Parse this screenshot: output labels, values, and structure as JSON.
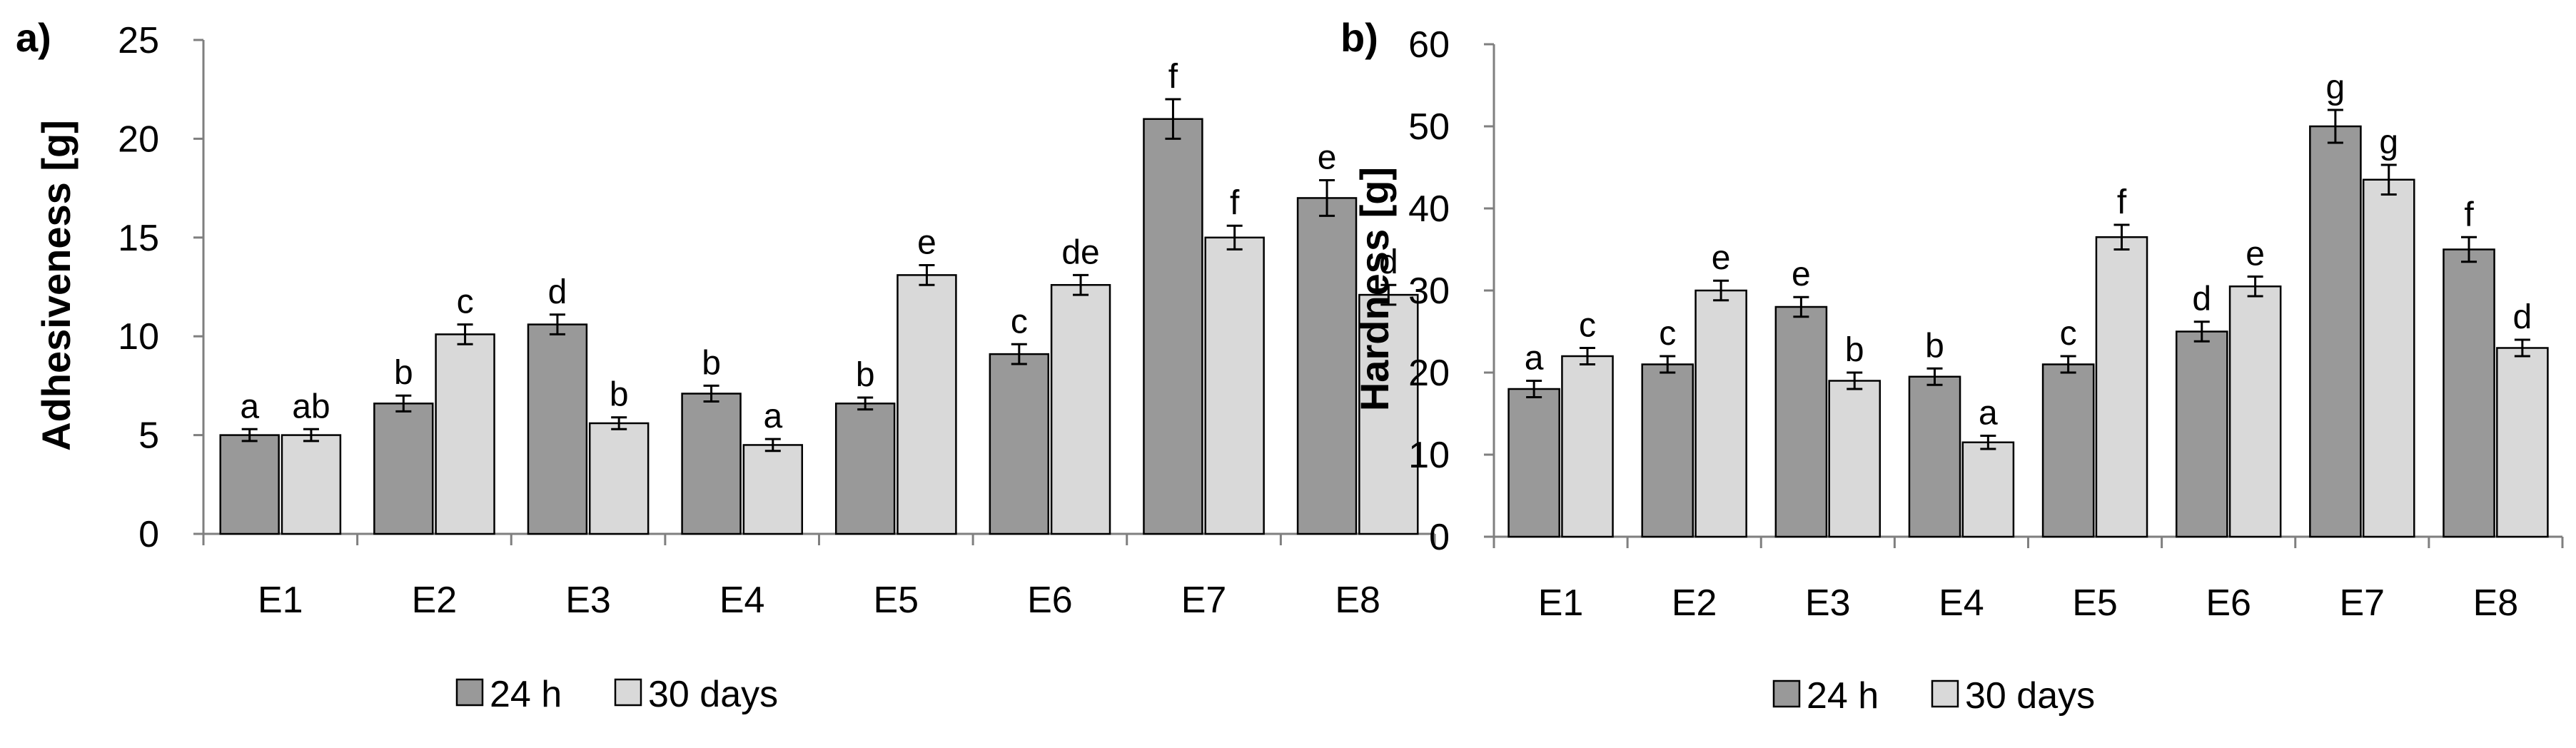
{
  "legend": {
    "series_24h": "24 h",
    "series_30d": "30 days"
  },
  "colors": {
    "series_24h": "#999999",
    "series_30d": "#d9d9d9",
    "axis": "#7f7f7f",
    "bar_stroke": "#000000"
  },
  "chart_data": [
    {
      "panel_label": "a)",
      "type": "bar",
      "ylabel": "Adhesiveness [g]",
      "ylim": [
        0,
        25
      ],
      "yticks": [
        0,
        5,
        10,
        15,
        20,
        25
      ],
      "categories": [
        "E1",
        "E2",
        "E3",
        "E4",
        "E5",
        "E6",
        "E7",
        "E8"
      ],
      "series": [
        {
          "name": "24 h",
          "values": [
            5.0,
            6.6,
            10.6,
            7.1,
            6.6,
            9.1,
            21.0,
            17.0
          ],
          "errors": [
            0.3,
            0.4,
            0.5,
            0.4,
            0.3,
            0.5,
            1.0,
            0.9
          ],
          "letters": [
            "a",
            "b",
            "d",
            "b",
            "b",
            "c",
            "f",
            "e"
          ]
        },
        {
          "name": "30 days",
          "values": [
            5.0,
            10.1,
            5.6,
            4.5,
            13.1,
            12.6,
            15.0,
            12.1
          ],
          "errors": [
            0.3,
            0.5,
            0.3,
            0.3,
            0.5,
            0.5,
            0.6,
            0.5
          ],
          "letters": [
            "ab",
            "c",
            "b",
            "a",
            "e",
            "de",
            "f",
            "d"
          ]
        }
      ]
    },
    {
      "panel_label": "b)",
      "type": "bar",
      "ylabel": "Hardness [g]",
      "ylim": [
        0,
        60
      ],
      "yticks": [
        0,
        10,
        20,
        30,
        40,
        50,
        60
      ],
      "categories": [
        "E1",
        "E2",
        "E3",
        "E4",
        "E5",
        "E6",
        "E7",
        "E8"
      ],
      "series": [
        {
          "name": "24 h",
          "values": [
            18.0,
            21.0,
            28.0,
            19.5,
            21.0,
            25.0,
            50.0,
            35.0
          ],
          "errors": [
            1.0,
            1.0,
            1.2,
            1.0,
            1.0,
            1.2,
            2.0,
            1.5
          ],
          "letters": [
            "a",
            "c",
            "e",
            "b",
            "c",
            "d",
            "g",
            "f"
          ]
        },
        {
          "name": "30 days",
          "values": [
            22.0,
            30.0,
            19.0,
            11.5,
            36.5,
            30.5,
            43.5,
            23.0
          ],
          "errors": [
            1.0,
            1.2,
            1.0,
            0.8,
            1.5,
            1.2,
            1.8,
            1.0
          ],
          "letters": [
            "c",
            "e",
            "b",
            "a",
            "f",
            "e",
            "g",
            "d"
          ]
        }
      ]
    }
  ]
}
